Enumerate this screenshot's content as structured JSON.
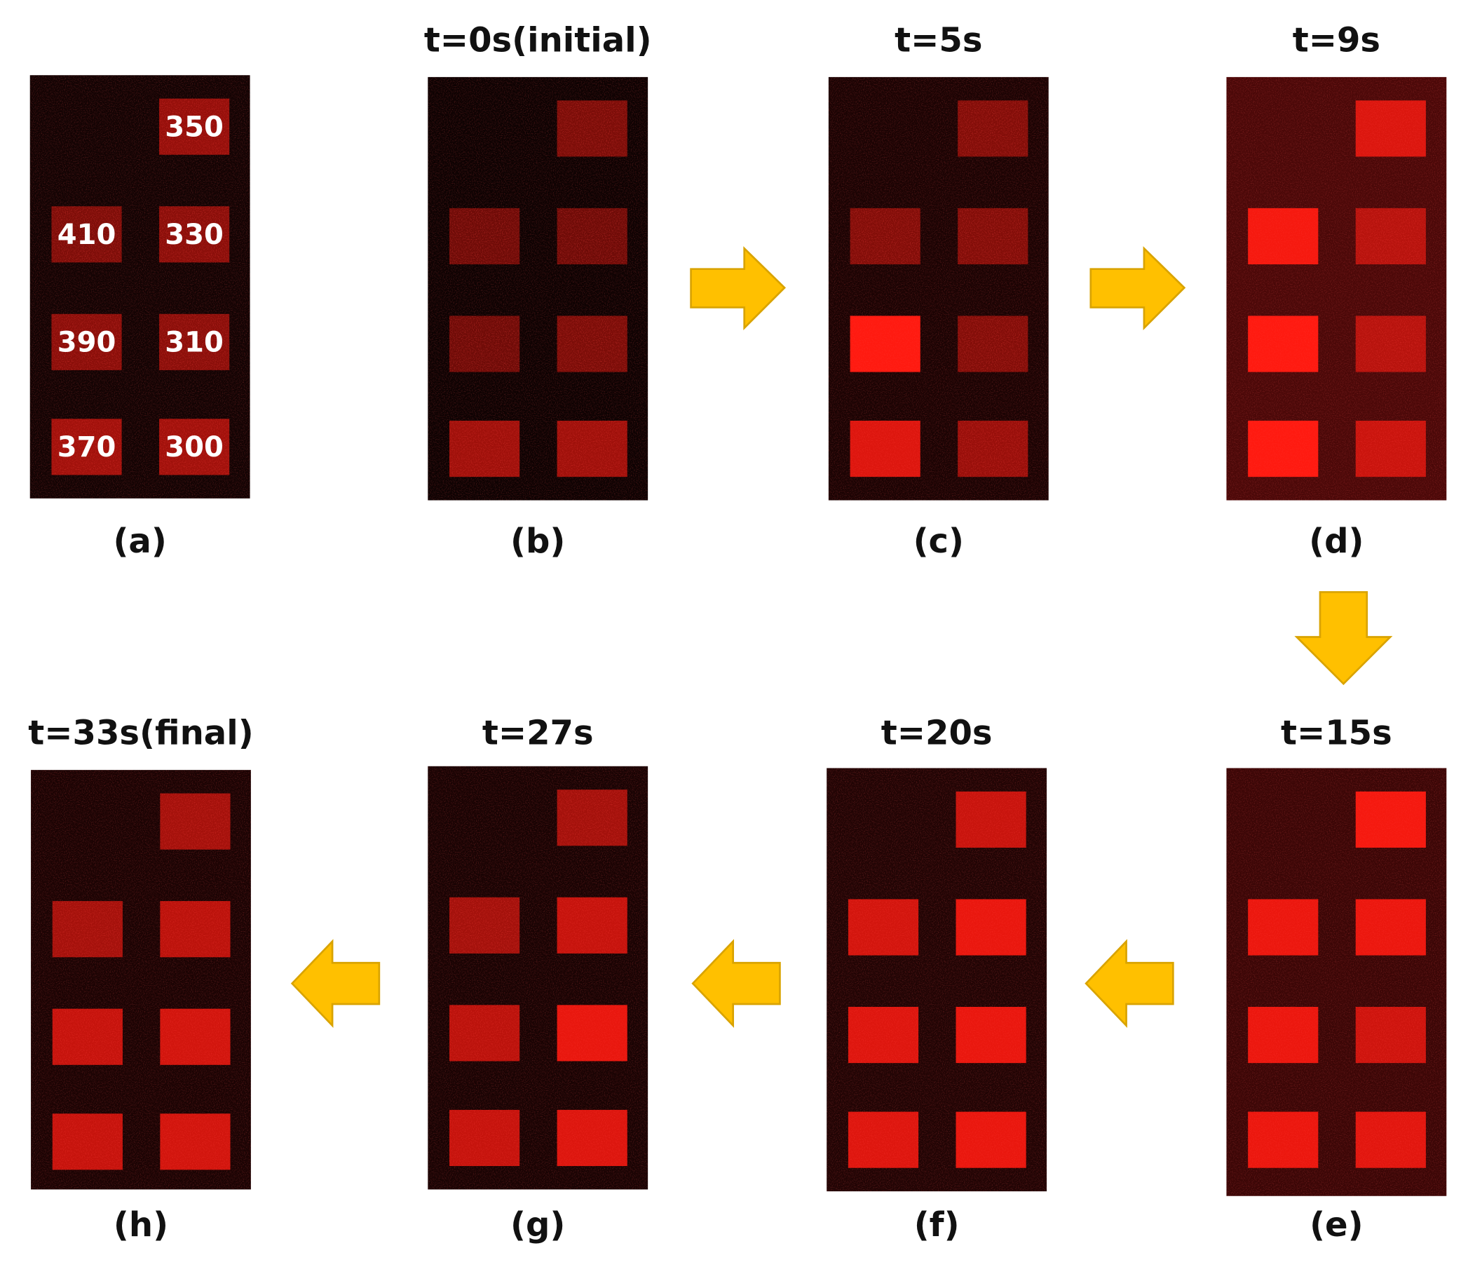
{
  "panels": [
    {
      "label": "(a)",
      "square_labels": [
        350,
        410,
        330,
        390,
        310,
        370,
        300
      ]
    },
    {
      "title": "t=0s(initial)",
      "label": "(b)"
    },
    {
      "title": "t=5s",
      "label": "(c)"
    },
    {
      "title": "t=9s",
      "label": "(d)"
    },
    {
      "title": "t=15s",
      "label": "(e)"
    },
    {
      "title": "t=20s",
      "label": "(f)"
    },
    {
      "title": "t=27s",
      "label": "(g)"
    },
    {
      "title": "t=33s(final)",
      "label": "(h)"
    }
  ]
}
